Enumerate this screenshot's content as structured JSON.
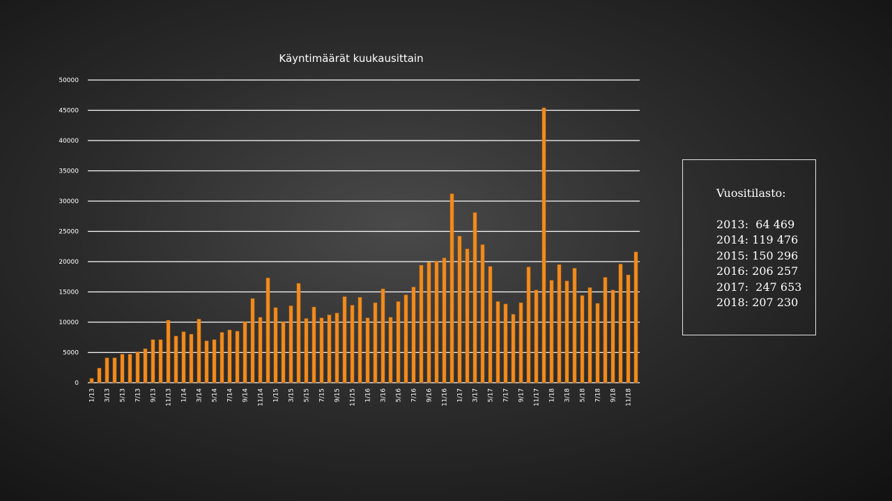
{
  "chart_data": {
    "type": "bar",
    "title": "Käyntimäärät kuukausittain",
    "xlabel": "",
    "ylabel": "",
    "ylim": [
      0,
      50000
    ],
    "yticks": [
      0,
      5000,
      10000,
      15000,
      20000,
      25000,
      30000,
      35000,
      40000,
      45000,
      50000
    ],
    "grid": true,
    "bar_color": "#f28c1e",
    "categories": [
      "1/13",
      "2/13",
      "3/13",
      "4/13",
      "5/13",
      "6/13",
      "7/13",
      "8/13",
      "9/13",
      "10/13",
      "11/13",
      "12/13",
      "1/14",
      "2/14",
      "3/14",
      "4/14",
      "5/14",
      "6/14",
      "7/14",
      "8/14",
      "9/14",
      "10/14",
      "11/14",
      "12/14",
      "1/15",
      "2/15",
      "3/15",
      "4/15",
      "5/15",
      "6/15",
      "7/15",
      "8/15",
      "9/15",
      "10/15",
      "11/15",
      "12/15",
      "1/16",
      "2/16",
      "3/16",
      "4/16",
      "5/16",
      "6/16",
      "7/16",
      "8/16",
      "9/16",
      "10/16",
      "11/16",
      "12/16",
      "1/17",
      "2/17",
      "3/17",
      "4/17",
      "5/17",
      "6/17",
      "7/17",
      "8/17",
      "9/17",
      "10/17",
      "11/17",
      "12/17",
      "1/18",
      "2/18",
      "3/18",
      "4/18",
      "5/18",
      "6/18",
      "7/18",
      "8/18",
      "9/18",
      "10/18",
      "11/18",
      "12/18"
    ],
    "tick_labels": [
      "1/13",
      "",
      "3/13",
      "",
      "5/13",
      "",
      "7/13",
      "",
      "9/13",
      "",
      "11/13",
      "",
      "1/14",
      "",
      "3/14",
      "",
      "5/14",
      "",
      "7/14",
      "",
      "9/14",
      "",
      "11/14",
      "",
      "1/15",
      "",
      "3/15",
      "",
      "5/15",
      "",
      "7/15",
      "",
      "9/15",
      "",
      "11/15",
      "",
      "1/16",
      "",
      "3/16",
      "",
      "5/16",
      "",
      "7/16",
      "",
      "9/16",
      "",
      "11/16",
      "",
      "1/17",
      "",
      "3/17",
      "",
      "5/17",
      "",
      "7/17",
      "",
      "9/17",
      "",
      "11/17",
      "",
      "1/18",
      "",
      "3/18",
      "",
      "5/18",
      "",
      "7/18",
      "",
      "9/18",
      "",
      "11/18",
      ""
    ],
    "values": [
      700,
      2400,
      4100,
      4100,
      4700,
      4700,
      5100,
      5600,
      7100,
      7100,
      10300,
      7700,
      8400,
      8000,
      10500,
      6900,
      7100,
      8300,
      8700,
      8500,
      10100,
      13900,
      10800,
      17300,
      12400,
      10100,
      12700,
      16400,
      10600,
      12500,
      10700,
      11200,
      11500,
      14200,
      12800,
      14100,
      10700,
      13200,
      15500,
      10800,
      13400,
      14500,
      15800,
      19400,
      19900,
      20100,
      20600,
      31200,
      24200,
      22100,
      28100,
      22800,
      19200,
      13400,
      13000,
      11300,
      13200,
      19100,
      15300,
      45400,
      16900,
      19500,
      16800,
      18900,
      14400,
      15700,
      13100,
      17400,
      15300,
      19600,
      17800,
      21600
    ]
  },
  "stats": {
    "title": "Vuositilasto:",
    "rows": [
      "2013:  64 469",
      "2014: 119 476",
      "2015: 150 296",
      "2016: 206 257",
      "2017:  247 653",
      "2018: 207 230"
    ]
  }
}
